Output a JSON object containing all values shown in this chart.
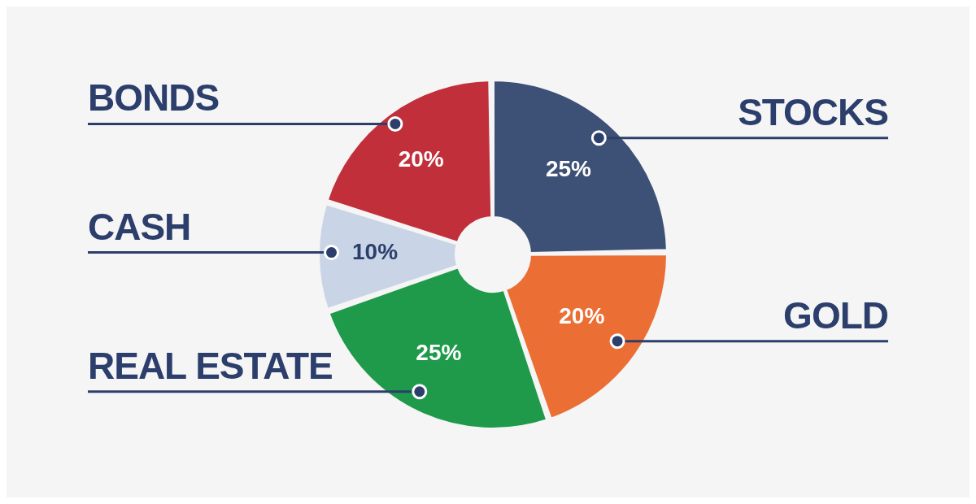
{
  "chart_data": {
    "type": "donut",
    "categories": [
      "STOCKS",
      "GOLD",
      "REAL ESTATE",
      "CASH",
      "BONDS"
    ],
    "values": [
      25,
      20,
      25,
      10,
      20
    ],
    "value_labels": [
      "25%",
      "20%",
      "25%",
      "10%",
      "20%"
    ],
    "colors": [
      "#3d5075",
      "#eb6e34",
      "#1e9a4a",
      "#c9d5e6",
      "#c12f3a"
    ],
    "legend": false
  }
}
